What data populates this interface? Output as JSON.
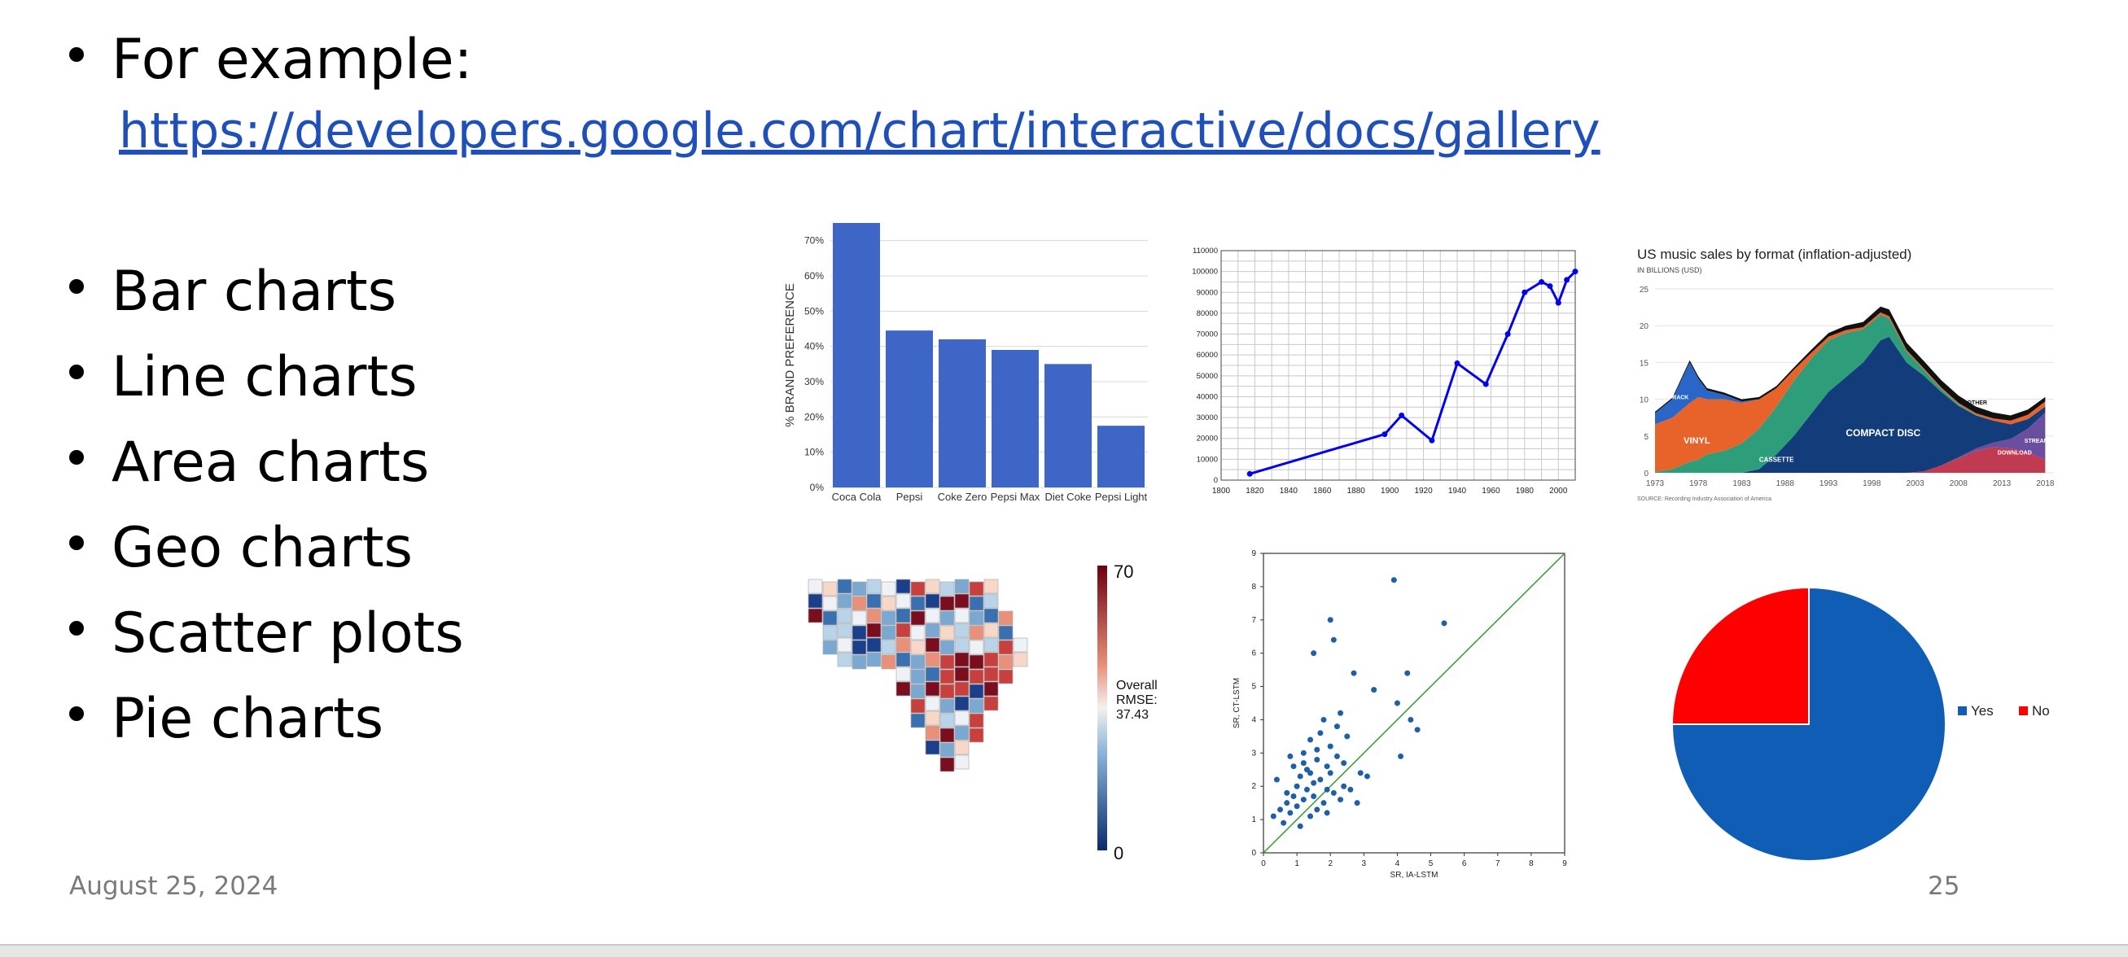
{
  "slide": {
    "intro": "For example:",
    "link": "https://developers.google.com/chart/interactive/docs/gallery",
    "bullets": [
      "Bar charts",
      "Line charts",
      "Area charts",
      "Geo charts",
      "Scatter plots",
      "Pie charts"
    ],
    "date": "August 25, 2024",
    "page": "25",
    "colors": {
      "link": "#1f4fb8",
      "text": "#000000",
      "footer": "#7a7a7a"
    }
  },
  "chart_data": [
    {
      "type": "bar",
      "categories": [
        "Coca Cola",
        "Pepsi",
        "Coke Zero",
        "Pepsi Max",
        "Diet Coke",
        "Pepsi Light"
      ],
      "values": [
        75,
        44.5,
        42,
        39,
        35,
        17.5
      ],
      "ylabel": "% BRAND PREFERENCE",
      "ylim": [
        0,
        75
      ],
      "yticks": [
        "0%",
        "10%",
        "20%",
        "30%",
        "40%",
        "50%",
        "60%",
        "70%"
      ],
      "grid": true,
      "color": "#3d66c7"
    },
    {
      "type": "line",
      "x": [
        1817,
        1897,
        1907,
        1925,
        1940,
        1957,
        1970,
        1980,
        1990,
        1995,
        2000,
        2005,
        2010
      ],
      "y": [
        3000,
        22000,
        31000,
        19000,
        56000,
        46000,
        70000,
        90000,
        95000,
        93000,
        85000,
        96000,
        100000
      ],
      "xticks": [
        "1800",
        "1820",
        "1840",
        "1860",
        "1880",
        "1900",
        "1920",
        "1940",
        "1960",
        "1980",
        "2000"
      ],
      "yticks": [
        "0",
        "10000",
        "20000",
        "30000",
        "40000",
        "50000",
        "60000",
        "70000",
        "80000",
        "90000",
        "100000",
        "110000"
      ],
      "xlim": [
        1800,
        2010
      ],
      "ylim": [
        0,
        110000
      ],
      "grid": true,
      "color": "#0000ee"
    },
    {
      "type": "area",
      "title": "US music sales by format (inflation-adjusted)",
      "subtitle": "IN BILLIONS (USD)",
      "source": "SOURCE: Recording Industry Association of America",
      "xticks": [
        "1973",
        "1978",
        "1983",
        "1988",
        "1993",
        "1998",
        "2003",
        "2008",
        "2013",
        "2018"
      ],
      "yticks": [
        "0",
        "5",
        "10",
        "15",
        "20",
        "25"
      ],
      "ylim": [
        0,
        25
      ],
      "labels": [
        "8-TRACK",
        "VINYL",
        "CASSETTE",
        "COMPACT DISC",
        "OTHER",
        "DOWNLOAD",
        "STREAMING"
      ],
      "colors": [
        "#2a66c8",
        "#e8632a",
        "#2e9e7a",
        "#123d7a",
        "#111111",
        "#c03b52",
        "#6a4fa0"
      ]
    },
    {
      "type": "heatmap",
      "legend_title": [
        "Overall",
        "RMSE:",
        "37.43"
      ],
      "legend_max": "70",
      "legend_min": "0"
    },
    {
      "type": "scatter",
      "xlabel": "SR, IA-LSTM",
      "ylabel": "SR, CT-LSTM",
      "xlim": [
        0,
        9
      ],
      "ylim": [
        0,
        9
      ],
      "xticks": [
        "0",
        "1",
        "2",
        "3",
        "4",
        "5",
        "6",
        "7",
        "8",
        "9"
      ],
      "yticks": [
        "0",
        "1",
        "2",
        "3",
        "4",
        "5",
        "6",
        "7",
        "8",
        "9"
      ],
      "points": [
        [
          0.3,
          1.1
        ],
        [
          0.4,
          2.2
        ],
        [
          0.5,
          1.3
        ],
        [
          0.6,
          0.9
        ],
        [
          0.7,
          1.8
        ],
        [
          0.7,
          1.5
        ],
        [
          0.8,
          1.2
        ],
        [
          0.9,
          2.6
        ],
        [
          0.9,
          1.7
        ],
        [
          1.0,
          1.4
        ],
        [
          1.0,
          2.0
        ],
        [
          1.1,
          0.8
        ],
        [
          1.1,
          2.3
        ],
        [
          1.2,
          1.6
        ],
        [
          1.2,
          3.0
        ],
        [
          1.3,
          1.9
        ],
        [
          1.3,
          2.5
        ],
        [
          1.4,
          1.1
        ],
        [
          1.4,
          3.4
        ],
        [
          1.5,
          2.1
        ],
        [
          1.5,
          1.7
        ],
        [
          1.6,
          2.8
        ],
        [
          1.6,
          1.3
        ],
        [
          1.7,
          3.6
        ],
        [
          1.7,
          2.2
        ],
        [
          1.8,
          1.5
        ],
        [
          1.8,
          4.0
        ],
        [
          1.9,
          2.6
        ],
        [
          1.9,
          1.9
        ],
        [
          2.0,
          7.0
        ],
        [
          2.0,
          3.2
        ],
        [
          2.0,
          2.4
        ],
        [
          2.1,
          1.8
        ],
        [
          2.1,
          6.4
        ],
        [
          2.2,
          3.8
        ],
        [
          2.2,
          2.9
        ],
        [
          2.3,
          4.2
        ],
        [
          2.3,
          1.6
        ],
        [
          2.4,
          2.7
        ],
        [
          2.5,
          3.5
        ],
        [
          2.6,
          1.9
        ],
        [
          2.7,
          5.4
        ],
        [
          2.8,
          1.5
        ],
        [
          2.9,
          2.4
        ],
        [
          3.1,
          2.3
        ],
        [
          3.3,
          4.9
        ],
        [
          3.9,
          8.2
        ],
        [
          4.0,
          4.5
        ],
        [
          4.1,
          2.9
        ],
        [
          4.3,
          5.4
        ],
        [
          4.4,
          4.0
        ],
        [
          4.6,
          3.7
        ],
        [
          5.4,
          6.9
        ],
        [
          1.5,
          6.0
        ],
        [
          1.2,
          2.7
        ],
        [
          0.8,
          2.9
        ],
        [
          1.4,
          2.4
        ],
        [
          1.6,
          3.1
        ],
        [
          2.4,
          2.0
        ],
        [
          1.9,
          1.2
        ]
      ],
      "diagonal": true,
      "colors": {
        "points": "#1f5fa8",
        "line": "#2e9e2e"
      }
    },
    {
      "type": "pie",
      "slices": [
        {
          "label": "Yes",
          "value": 75
        },
        {
          "label": "No",
          "value": 25
        }
      ],
      "colors": [
        "#0f5db4",
        "#ff0000"
      ],
      "legend": "right"
    }
  ]
}
